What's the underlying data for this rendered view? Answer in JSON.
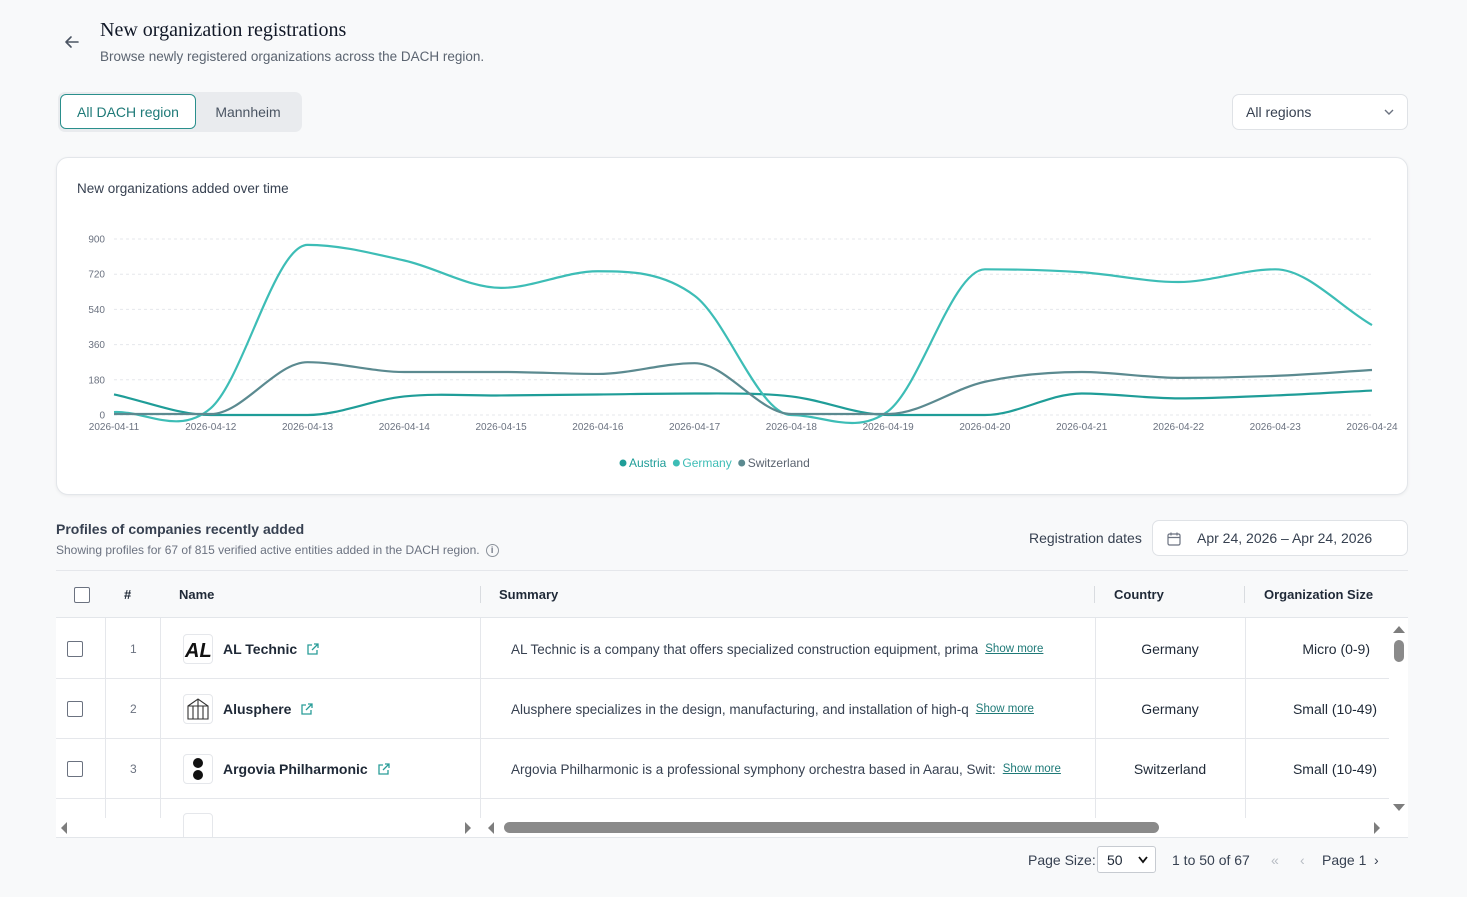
{
  "header": {
    "title": "New organization registrations",
    "subtitle": "Browse newly registered organizations across the DACH region."
  },
  "tabs": [
    {
      "label": "All DACH region",
      "active": true
    },
    {
      "label": "Mannheim",
      "active": false
    }
  ],
  "region_filter": {
    "value": "All regions"
  },
  "chart_card": {
    "title": "New organizations added over time"
  },
  "chart_data": {
    "type": "line",
    "title": "New organizations added over time",
    "x": [
      "2026-04-11",
      "2026-04-12",
      "2026-04-13",
      "2026-04-14",
      "2026-04-15",
      "2026-04-16",
      "2026-04-17",
      "2026-04-18",
      "2026-04-19",
      "2026-04-20",
      "2026-04-21",
      "2026-04-22",
      "2026-04-23",
      "2026-04-24"
    ],
    "yticks": [
      "0",
      "180",
      "360",
      "540",
      "720",
      "900"
    ],
    "ylim": [
      0,
      900
    ],
    "grid": true,
    "legend_position": "bottom-center",
    "series": [
      {
        "name": "Austria",
        "color": "#1f9d98",
        "values": [
          105,
          0,
          0,
          95,
          100,
          105,
          110,
          95,
          0,
          0,
          110,
          85,
          100,
          125
        ]
      },
      {
        "name": "Germany",
        "color": "#3dbdb6",
        "values": [
          15,
          35,
          870,
          790,
          650,
          735,
          610,
          0,
          20,
          745,
          730,
          680,
          745,
          460
        ]
      },
      {
        "name": "Switzerland",
        "color": "#5b8a90",
        "values": [
          5,
          5,
          270,
          220,
          220,
          210,
          265,
          5,
          5,
          170,
          220,
          190,
          200,
          230
        ]
      }
    ]
  },
  "profiles": {
    "title": "Profiles of companies recently added",
    "subtitle": "Showing profiles for 67 of 815 verified active entities added in the DACH region."
  },
  "registration": {
    "label": "Registration dates",
    "value": "Apr 24, 2026 – Apr 24, 2026"
  },
  "table": {
    "columns": {
      "num": "#",
      "name": "Name",
      "summary": "Summary",
      "country": "Country",
      "size": "Organization Size"
    },
    "show_more": "Show more",
    "rows": [
      {
        "num": "1",
        "name": "AL Technic",
        "summary": "AL Technic is a company that offers specialized construction equipment, prima",
        "country": "Germany",
        "size": "Micro (0-9)",
        "logo_icon": "al-technic-logo"
      },
      {
        "num": "2",
        "name": "Alusphere",
        "summary": "Alusphere specializes in the design, manufacturing, and installation of high-q",
        "country": "Germany",
        "size": "Small (10-49)",
        "logo_icon": "alusphere-logo"
      },
      {
        "num": "3",
        "name": "Argovia Philharmonic",
        "summary": "Argovia Philharmonic is a professional symphony orchestra based in Aarau, Swit:",
        "country": "Switzerland",
        "size": "Small (10-49)",
        "logo_icon": "argovia-logo"
      }
    ]
  },
  "pagination": {
    "page_size_label": "Page Size:",
    "page_size": "50",
    "range": "1 to 50 of 67",
    "page": "Page 1"
  }
}
